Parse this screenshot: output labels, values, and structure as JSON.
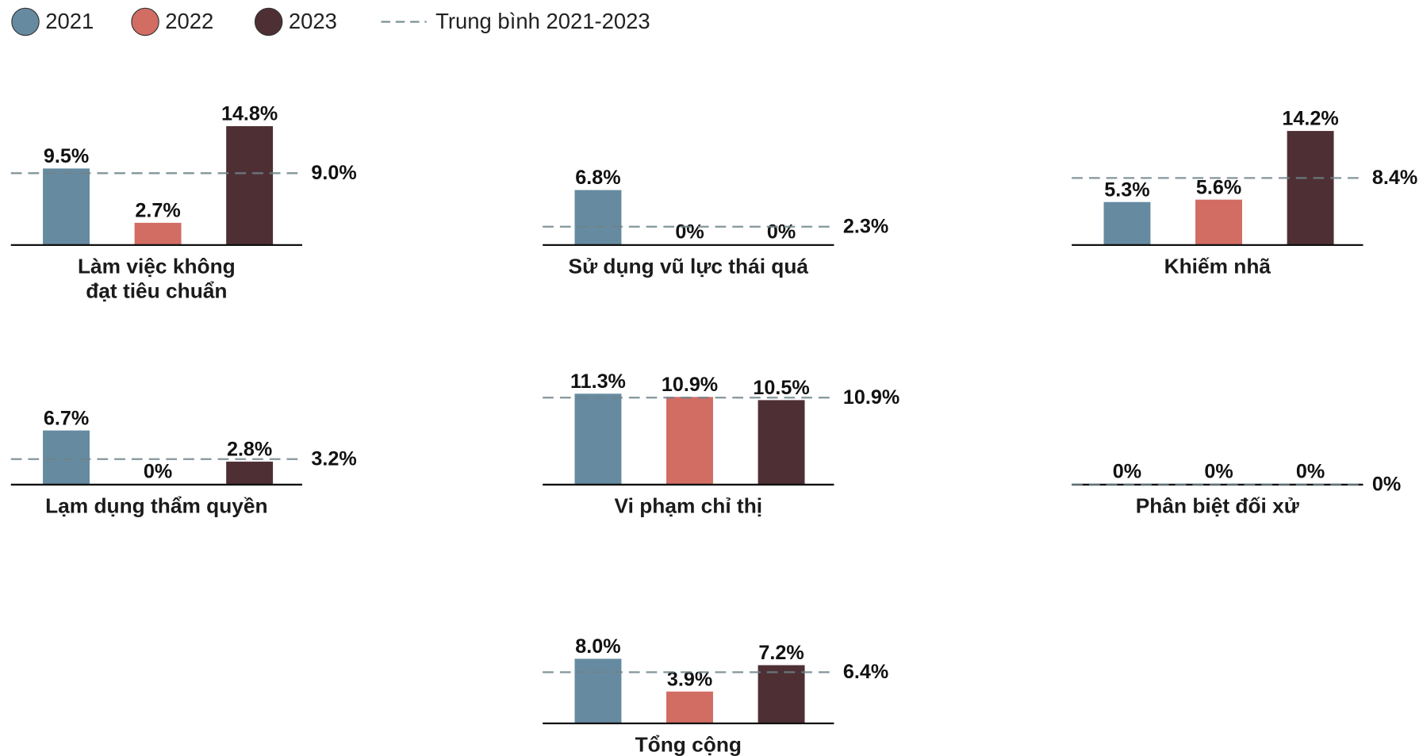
{
  "legend": {
    "series": [
      {
        "name": "2021",
        "color": "#668ba1"
      },
      {
        "name": "2022",
        "color": "#d26d64"
      },
      {
        "name": "2023",
        "color": "#4e3034"
      }
    ],
    "average_label": "Trung bình 2021-2023"
  },
  "chart_data": [
    {
      "type": "bar",
      "title": [
        "Làm việc không",
        "đạt tiêu chuẩn"
      ],
      "values": [
        9.5,
        2.7,
        14.8
      ],
      "value_labels": [
        "9.5%",
        "2.7%",
        "14.8%"
      ],
      "average": {
        "value": 9.0,
        "label": "9.0%"
      }
    },
    {
      "type": "bar",
      "title": [
        "Sử dụng vũ lực thái quá"
      ],
      "values": [
        6.8,
        0,
        0
      ],
      "value_labels": [
        "6.8%",
        "0%",
        "0%"
      ],
      "average": {
        "value": 2.3,
        "label": "2.3%"
      }
    },
    {
      "type": "bar",
      "title": [
        "Khiếm nhã"
      ],
      "values": [
        5.3,
        5.6,
        14.2
      ],
      "value_labels": [
        "5.3%",
        "5.6%",
        "14.2%"
      ],
      "average": {
        "value": 8.4,
        "label": "8.4%"
      }
    },
    {
      "type": "bar",
      "title": [
        "Lạm dụng thẩm quyền"
      ],
      "values": [
        6.7,
        0,
        2.8
      ],
      "value_labels": [
        "6.7%",
        "0%",
        "2.8%"
      ],
      "average": {
        "value": 3.2,
        "label": "3.2%"
      }
    },
    {
      "type": "bar",
      "title": [
        "Vi phạm chỉ thị"
      ],
      "values": [
        11.3,
        10.9,
        10.5
      ],
      "value_labels": [
        "11.3%",
        "10.9%",
        "10.5%"
      ],
      "average": {
        "value": 10.9,
        "label": "10.9%"
      }
    },
    {
      "type": "bar",
      "title": [
        "Phân biệt đối xử"
      ],
      "values": [
        0,
        0,
        0
      ],
      "value_labels": [
        "0%",
        "0%",
        "0%"
      ],
      "average": {
        "value": 0,
        "label": "0%"
      }
    },
    {
      "type": "bar",
      "title": [
        "Tổng cộng"
      ],
      "values": [
        8.0,
        3.9,
        7.2
      ],
      "value_labels": [
        "8.0%",
        "3.9%",
        "7.2%"
      ],
      "average": {
        "value": 6.4,
        "label": "6.4%"
      }
    }
  ]
}
